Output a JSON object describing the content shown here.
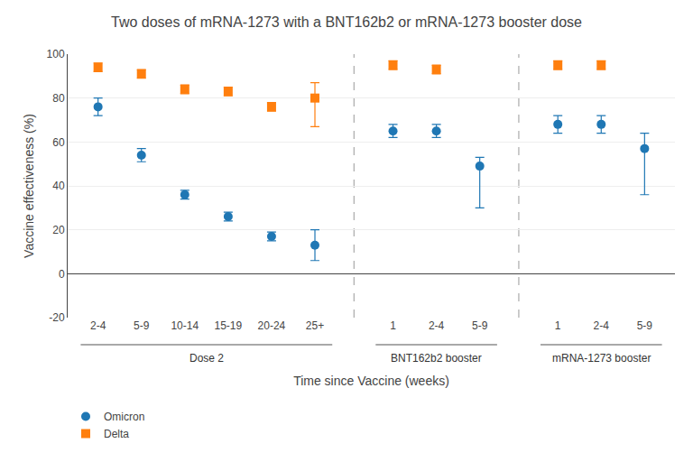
{
  "chart_data": {
    "type": "scatter",
    "title": "Two doses of mRNA-1273 with a BNT162b2 or mRNA-1273 booster dose",
    "xlabel": "Time since Vaccine (weeks)",
    "ylabel": "Vaccine effectiveness (%)",
    "categories": [
      "2-4",
      "5-9",
      "10-14",
      "15-19",
      "20-24",
      "25+",
      "1",
      "2-4",
      "5-9",
      "1",
      "2-4",
      "5-9"
    ],
    "groups": [
      {
        "label": "Dose 2",
        "count": 6
      },
      {
        "label": "BNT162b2 booster",
        "count": 3
      },
      {
        "label": "mRNA-1273 booster",
        "count": 3
      }
    ],
    "series": [
      {
        "name": "Omicron",
        "marker": "circle",
        "values": [
          76,
          54,
          36,
          26,
          17,
          13,
          65,
          65,
          49,
          68,
          68,
          57
        ],
        "err_low": [
          4,
          3,
          2,
          2,
          2,
          7,
          3,
          3,
          19,
          4,
          4,
          21
        ],
        "err_high": [
          4,
          3,
          2,
          2,
          2,
          7,
          3,
          3,
          4,
          4,
          4,
          7
        ]
      },
      {
        "name": "Delta",
        "marker": "square",
        "values": [
          94,
          91,
          84,
          83,
          76,
          80,
          95,
          93,
          null,
          95,
          95,
          null
        ],
        "err_low": [
          2,
          2,
          2,
          2,
          2,
          13,
          2,
          2,
          null,
          2,
          2,
          null
        ],
        "err_high": [
          2,
          2,
          2,
          2,
          2,
          7,
          2,
          2,
          null,
          2,
          2,
          null
        ]
      }
    ],
    "ylim": [
      -20,
      100
    ],
    "yticks": [
      -20,
      0,
      20,
      40,
      60,
      80,
      100
    ],
    "grid": true,
    "legend": "lower left"
  }
}
